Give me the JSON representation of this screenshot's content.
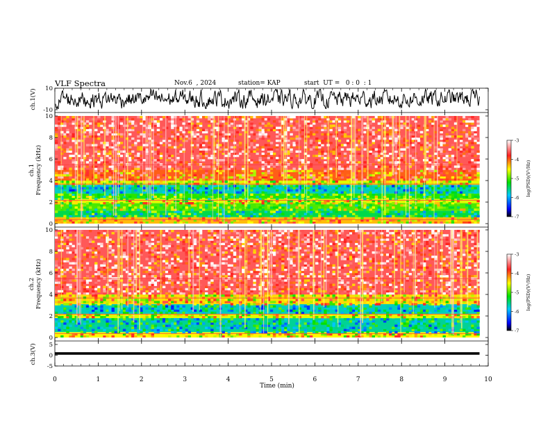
{
  "header": {
    "title": "VLF Spectra",
    "date": "Nov.6  , 2024",
    "station": "station= KAP",
    "start": "start  UT =   0 : 0  : 1"
  },
  "chart_data": [
    {
      "type": "line",
      "panel": "ch1-waveform",
      "ylabel": "ch.1(V)",
      "ylim": [
        -10,
        10
      ],
      "yticks": [
        "10",
        "-10"
      ],
      "xlim": [
        0,
        10
      ],
      "note_series": "noisy voltage trace, roughly between -8 and 8 V, spanning 0 to 9.8 min"
    },
    {
      "type": "heatmap",
      "panel": "ch1-spectrogram",
      "ylabel_line1": "ch.1",
      "ylabel_line2": "Frequency  (kHz)",
      "ylim": [
        0,
        10
      ],
      "yticks": [
        "0",
        "2",
        "4",
        "6",
        "8",
        "10"
      ],
      "xlim": [
        0,
        10
      ],
      "data_extent_min": 9.8,
      "colorbar": {
        "label": "log(PSD)(V²/Hz)",
        "ticks": [
          "-3",
          "-4",
          "-5",
          "-6",
          "-7"
        ],
        "range": [
          -7,
          -3
        ]
      },
      "bands": [
        {
          "from_khz": 0.0,
          "to_khz": 0.6,
          "level": -4.3
        },
        {
          "from_khz": 0.6,
          "to_khz": 1.2,
          "level": -5.4
        },
        {
          "from_khz": 1.2,
          "to_khz": 1.9,
          "level": -5.0
        },
        {
          "from_khz": 1.9,
          "to_khz": 2.3,
          "level": -4.6
        },
        {
          "from_khz": 2.3,
          "to_khz": 2.8,
          "level": -5.1
        },
        {
          "from_khz": 2.8,
          "to_khz": 3.6,
          "level": -5.7
        },
        {
          "from_khz": 3.6,
          "to_khz": 4.0,
          "level": -4.6
        },
        {
          "from_khz": 4.0,
          "to_khz": 5.0,
          "level": -4.0
        },
        {
          "from_khz": 5.0,
          "to_khz": 10.0,
          "level": -3.6
        }
      ]
    },
    {
      "type": "heatmap",
      "panel": "ch2-spectrogram",
      "ylabel_line1": "ch.2",
      "ylabel_line2": "Frequency  (kHz)",
      "ylim": [
        0,
        10
      ],
      "yticks": [
        "0",
        "2",
        "4",
        "6",
        "8",
        "10"
      ],
      "xlim": [
        0,
        10
      ],
      "data_extent_min": 9.8,
      "colorbar": {
        "label": "log(PSD)(V²/Hz)",
        "ticks": [
          "-3",
          "-4",
          "-5",
          "-6",
          "-7"
        ],
        "range": [
          -7,
          -3
        ]
      },
      "bands": [
        {
          "from_khz": 0.0,
          "to_khz": 0.5,
          "level": -4.5
        },
        {
          "from_khz": 0.5,
          "to_khz": 1.8,
          "level": -5.6
        },
        {
          "from_khz": 1.8,
          "to_khz": 2.2,
          "level": -4.6
        },
        {
          "from_khz": 2.2,
          "to_khz": 3.1,
          "level": -5.7
        },
        {
          "from_khz": 3.1,
          "to_khz": 4.0,
          "level": -4.4
        },
        {
          "from_khz": 4.0,
          "to_khz": 10.0,
          "level": -3.6
        }
      ]
    },
    {
      "type": "line",
      "panel": "ch3-waveform",
      "ylabel": "ch.3(V)",
      "ylim": [
        -5,
        5
      ],
      "yticks": [
        "5",
        "0",
        "-5"
      ],
      "xlim": [
        0,
        10
      ],
      "note_series": "nearly constant trace at about 0 V with small thickness, 0 to 9.8 min"
    }
  ],
  "x_axis": {
    "label": "Time  (min)",
    "ticks": [
      "0",
      "1",
      "2",
      "3",
      "4",
      "5",
      "6",
      "7",
      "8",
      "9",
      "10"
    ]
  }
}
